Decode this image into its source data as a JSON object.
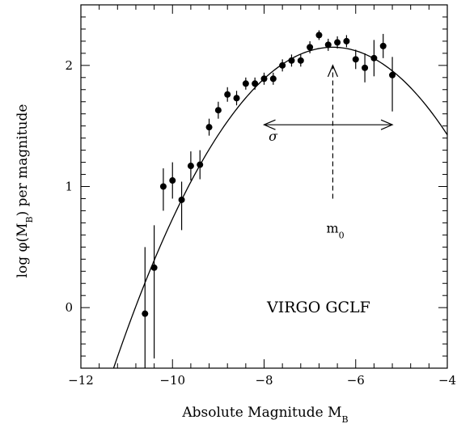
{
  "chart_data": {
    "type": "scatter",
    "title": "VIRGO GCLF",
    "xlabel": "Absolute Magnitude M",
    "xlabel_sub": "B",
    "ylabel_prefix": "log φ(M",
    "ylabel_sub": "B",
    "ylabel_suffix": ") per magnitude",
    "xlim": [
      -12,
      -4
    ],
    "ylim": [
      -0.5,
      2.5
    ],
    "xticks": [
      -12,
      -10,
      -8,
      -6,
      -4
    ],
    "yticks": [
      0,
      1,
      2
    ],
    "xtick_labels": [
      "−12",
      "−10",
      "−8",
      "−6",
      "−4"
    ],
    "ytick_labels": [
      "0",
      "1",
      "2"
    ],
    "x_minor_step": 0.4,
    "y_minor_step": 0.1,
    "points": [
      {
        "x": -10.6,
        "y": -0.05,
        "yerr_lo": 0.6,
        "yerr_hi": 0.55
      },
      {
        "x": -10.4,
        "y": 0.33,
        "yerr_lo": 0.75,
        "yerr_hi": 0.35
      },
      {
        "x": -10.2,
        "y": 1.0,
        "yerr_lo": 0.2,
        "yerr_hi": 0.15
      },
      {
        "x": -10.0,
        "y": 1.05,
        "yerr_lo": 0.15,
        "yerr_hi": 0.15
      },
      {
        "x": -9.8,
        "y": 0.89,
        "yerr_lo": 0.25,
        "yerr_hi": 0.15
      },
      {
        "x": -9.6,
        "y": 1.17,
        "yerr_lo": 0.12,
        "yerr_hi": 0.12
      },
      {
        "x": -9.4,
        "y": 1.18,
        "yerr_lo": 0.12,
        "yerr_hi": 0.12
      },
      {
        "x": -9.2,
        "y": 1.49,
        "yerr_lo": 0.07,
        "yerr_hi": 0.07
      },
      {
        "x": -9.0,
        "y": 1.63,
        "yerr_lo": 0.07,
        "yerr_hi": 0.07
      },
      {
        "x": -8.8,
        "y": 1.76,
        "yerr_lo": 0.06,
        "yerr_hi": 0.06
      },
      {
        "x": -8.6,
        "y": 1.73,
        "yerr_lo": 0.06,
        "yerr_hi": 0.06
      },
      {
        "x": -8.4,
        "y": 1.85,
        "yerr_lo": 0.05,
        "yerr_hi": 0.05
      },
      {
        "x": -8.2,
        "y": 1.85,
        "yerr_lo": 0.05,
        "yerr_hi": 0.05
      },
      {
        "x": -8.0,
        "y": 1.89,
        "yerr_lo": 0.05,
        "yerr_hi": 0.05
      },
      {
        "x": -7.8,
        "y": 1.89,
        "yerr_lo": 0.05,
        "yerr_hi": 0.05
      },
      {
        "x": -7.6,
        "y": 2.0,
        "yerr_lo": 0.05,
        "yerr_hi": 0.05
      },
      {
        "x": -7.4,
        "y": 2.04,
        "yerr_lo": 0.05,
        "yerr_hi": 0.05
      },
      {
        "x": -7.2,
        "y": 2.04,
        "yerr_lo": 0.05,
        "yerr_hi": 0.05
      },
      {
        "x": -7.0,
        "y": 2.15,
        "yerr_lo": 0.05,
        "yerr_hi": 0.05
      },
      {
        "x": -6.8,
        "y": 2.25,
        "yerr_lo": 0.04,
        "yerr_hi": 0.04
      },
      {
        "x": -6.6,
        "y": 2.17,
        "yerr_lo": 0.05,
        "yerr_hi": 0.05
      },
      {
        "x": -6.4,
        "y": 2.19,
        "yerr_lo": 0.05,
        "yerr_hi": 0.05
      },
      {
        "x": -6.2,
        "y": 2.2,
        "yerr_lo": 0.05,
        "yerr_hi": 0.05
      },
      {
        "x": -6.0,
        "y": 2.05,
        "yerr_lo": 0.08,
        "yerr_hi": 0.08
      },
      {
        "x": -5.8,
        "y": 1.98,
        "yerr_lo": 0.12,
        "yerr_hi": 0.12
      },
      {
        "x": -5.6,
        "y": 2.06,
        "yerr_lo": 0.15,
        "yerr_hi": 0.15
      },
      {
        "x": -5.4,
        "y": 2.16,
        "yerr_lo": 0.1,
        "yerr_hi": 0.1
      },
      {
        "x": -5.2,
        "y": 1.92,
        "yerr_lo": 0.3,
        "yerr_hi": 0.15
      }
    ],
    "fit_curve": {
      "type": "gaussian",
      "peak_x": -6.5,
      "peak_y": 2.15,
      "sigma": 1.37,
      "x_range": [
        -11.5,
        -4
      ]
    },
    "annotations": {
      "sigma_label": "σ",
      "sigma_arrow": {
        "x_from": -8.0,
        "x_to": -5.2,
        "y": 1.51
      },
      "m0_label": "m",
      "m0_sub": "0",
      "m0_arrow": {
        "x": -6.5,
        "y_from": 0.9,
        "y_to": 2.0
      }
    },
    "grid": false,
    "legend": "none"
  }
}
